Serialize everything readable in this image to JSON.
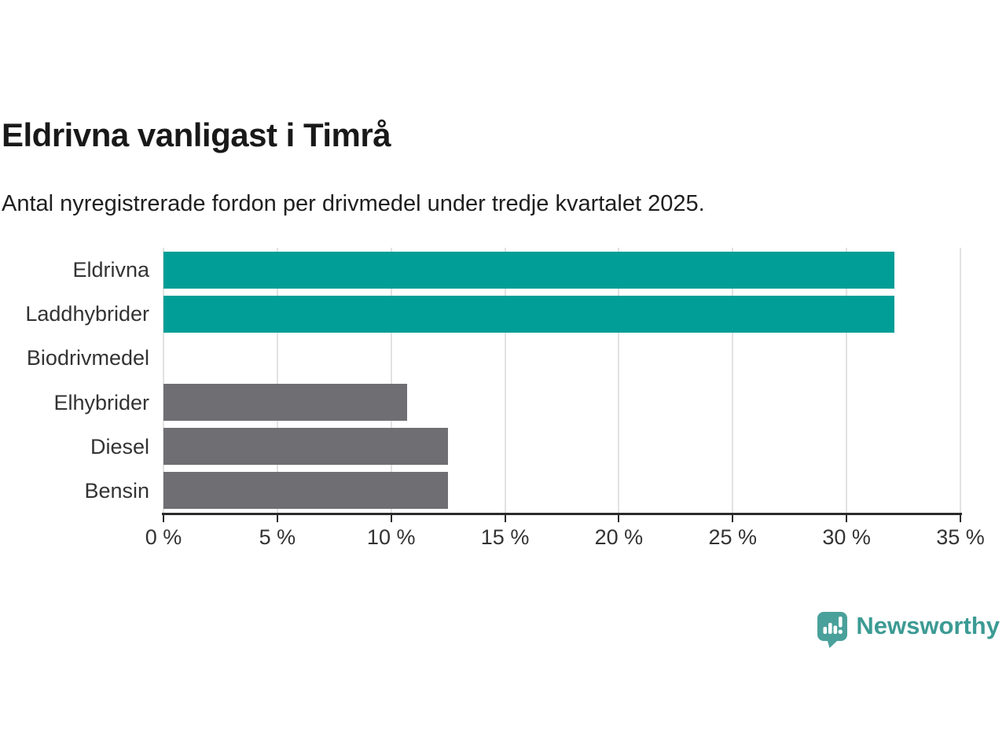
{
  "header": {
    "title": "Eldrivna vanligast i Timrå",
    "subtitle": "Antal nyregistrerade fordon per drivmedel under tredje kvartalet 2025."
  },
  "chart_data": {
    "type": "bar",
    "orientation": "horizontal",
    "title": "Eldrivna vanligast i Timrå",
    "subtitle": "Antal nyregistrerade fordon per drivmedel under tredje kvartalet 2025.",
    "categories": [
      "Eldrivna",
      "Laddhybrider",
      "Biodrivmedel",
      "Elhybrider",
      "Diesel",
      "Bensin"
    ],
    "values": [
      32.1,
      32.1,
      0,
      10.7,
      12.5,
      12.5
    ],
    "unit": "%",
    "bar_colors": [
      "#009E96",
      "#009E96",
      "#6E6E73",
      "#6E6E73",
      "#6E6E73",
      "#6E6E73"
    ],
    "xlim": [
      0,
      35
    ],
    "xticks": [
      0,
      5,
      10,
      15,
      20,
      25,
      30,
      35
    ],
    "xtick_labels": [
      "0 %",
      "5 %",
      "10 %",
      "15 %",
      "20 %",
      "25 %",
      "30 %",
      "35 %"
    ],
    "xlabel": "",
    "ylabel": "",
    "grid": "vertical",
    "legend": "none"
  },
  "footer": {
    "brand": "Newsworthy"
  },
  "colors": {
    "accent_teal": "#009E96",
    "neutral_gray": "#6E6E73",
    "logo_bubble_teal": "#4AA19B",
    "logo_text_teal": "#3C9B94",
    "gridline": "#E2E2E2",
    "axis": "#2B2B2B",
    "label_text": "#333333"
  }
}
